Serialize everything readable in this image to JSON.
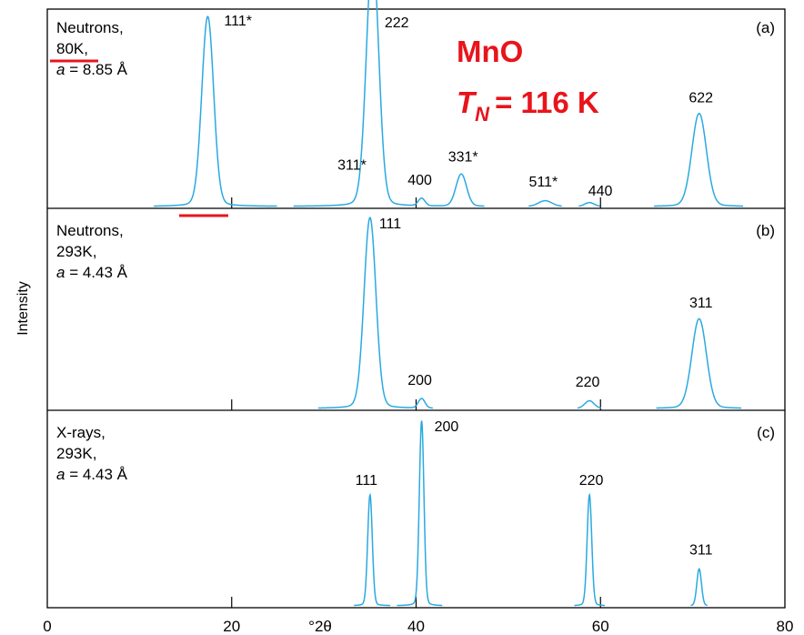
{
  "annotation": {
    "compound": "MnO",
    "tn_symbol": "T",
    "tn_subscript": "N",
    "tn_value": "= 116 K",
    "color": "#e8141c"
  },
  "peak_color": "#2aa9e0",
  "chart_data": [
    {
      "type": "line",
      "panel_label": "(a)",
      "info_lines": [
        "Neutrons,",
        "80K,"
      ],
      "lattice": {
        "symbol": "a",
        "value": " = 8.85 Å"
      },
      "xlim": [
        0,
        80
      ],
      "ylim": [
        0,
        100
      ],
      "series": [
        {
          "peaks": [
            {
              "label": "111*",
              "x": 17.4,
              "y": 100,
              "w": 0.9
            },
            {
              "label": "311*",
              "x": 35.0,
              "y": 44,
              "w": 0.9,
              "ls": 0.0
            },
            {
              "label": "222",
              "x": 35.4,
              "y": 95,
              "w": 0.9,
              "ls": 0.0
            },
            {
              "label": "400",
              "x": 40.6,
              "y": 4,
              "w": 0.5
            },
            {
              "label": "331*",
              "x": 44.9,
              "y": 17,
              "w": 0.8
            },
            {
              "label": "511*",
              "x": 54.0,
              "y": 3,
              "w": 1.0
            },
            {
              "label": "440",
              "x": 58.8,
              "y": 2,
              "w": 0.7
            },
            {
              "label": "622",
              "x": 70.7,
              "y": 49,
              "w": 1.1
            }
          ]
        }
      ]
    },
    {
      "type": "line",
      "panel_label": "(b)",
      "info_lines": [
        "Neutrons,",
        "293K,"
      ],
      "lattice": {
        "symbol": "a",
        "value": " = 4.43 Å"
      },
      "xlim": [
        0,
        80
      ],
      "ylim": [
        0,
        100
      ],
      "series": [
        {
          "peaks": [
            {
              "label": "111",
              "x": 35.0,
              "y": 100,
              "w": 0.9
            },
            {
              "label": "200",
              "x": 40.6,
              "y": 5,
              "w": 0.5
            },
            {
              "label": "220",
              "x": 58.8,
              "y": 4,
              "w": 0.7
            },
            {
              "label": "311",
              "x": 70.7,
              "y": 47,
              "w": 1.1
            }
          ]
        }
      ]
    },
    {
      "type": "line",
      "panel_label": "(c)",
      "info_lines": [
        "X-rays,",
        "293K,"
      ],
      "lattice": {
        "symbol": "a",
        "value": " = 4.43 Å"
      },
      "xlim": [
        0,
        80
      ],
      "ylim": [
        0,
        100
      ],
      "series": [
        {
          "peaks": [
            {
              "label": "111",
              "x": 35.0,
              "y": 60,
              "w": 0.35
            },
            {
              "label": "200",
              "x": 40.6,
              "y": 100,
              "w": 0.35
            },
            {
              "label": "220",
              "x": 58.8,
              "y": 60,
              "w": 0.35
            },
            {
              "label": "311",
              "x": 70.7,
              "y": 20,
              "w": 0.35
            }
          ]
        }
      ]
    }
  ],
  "axes": {
    "ylabel": "Intensity",
    "xlabel": "°2θ",
    "xticks": [
      0,
      20,
      40,
      60,
      80
    ],
    "xlim": [
      0,
      80
    ]
  }
}
